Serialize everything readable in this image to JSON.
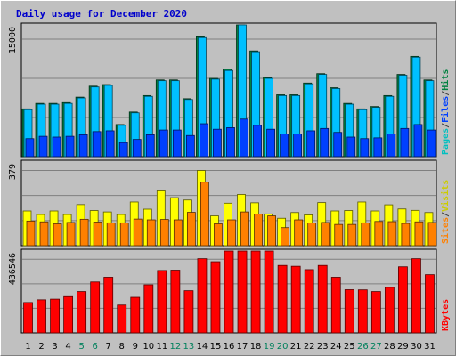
{
  "chart_data": {
    "type": "bar",
    "title": "Daily usage for December 2020",
    "days": [
      "1",
      "2",
      "3",
      "4",
      "5",
      "6",
      "7",
      "8",
      "9",
      "10",
      "11",
      "12",
      "13",
      "14",
      "15",
      "16",
      "17",
      "18",
      "19",
      "20",
      "21",
      "22",
      "23",
      "24",
      "25",
      "26",
      "27",
      "28",
      "29",
      "30",
      "31"
    ],
    "weekend_days": [
      "5",
      "6",
      "12",
      "13",
      "19",
      "20",
      "26",
      "27"
    ],
    "colors": {
      "title": "#0000cc",
      "hits": "#008040",
      "files": "#00c0ff",
      "pages": "#0040ff",
      "visits": "#ffff00",
      "sites": "#ff8000",
      "kbytes": "#ff0000",
      "weekend_label": "#00805c",
      "weekday_label": "#000000",
      "grid": "#808080",
      "background": "#c0c0c0"
    },
    "panels": [
      {
        "id": "traffic",
        "ymax_label": "15000",
        "ymax": 15000,
        "gridlines": 3,
        "legend": [
          {
            "text": "Pages",
            "color": "#00c0c0"
          },
          {
            "text": "/",
            "color": "#404040"
          },
          {
            "text": "Files",
            "color": "#0040ff"
          },
          {
            "text": "/",
            "color": "#404040"
          },
          {
            "text": "Hits",
            "color": "#008040"
          }
        ],
        "series": [
          {
            "name": "Hits",
            "color": "#008040",
            "values": [
              6100,
              6800,
              6800,
              6900,
              7600,
              9000,
              9200,
              4100,
              5700,
              7800,
              9800,
              9800,
              7400,
              15300,
              10000,
              11200,
              18800,
              13500,
              10100,
              7900,
              7900,
              9400,
              10600,
              8800,
              6800,
              6100,
              6400,
              7800,
              10500,
              12800,
              9800
            ]
          },
          {
            "name": "Files",
            "color": "#00c0ff",
            "values": [
              6000,
              6700,
              6700,
              6800,
              7500,
              8900,
              9100,
              4000,
              5600,
              7700,
              9700,
              9700,
              7300,
              15200,
              9900,
              11000,
              18600,
              13400,
              10000,
              7800,
              7800,
              9300,
              10500,
              8700,
              6700,
              6000,
              6300,
              7700,
              10400,
              12700,
              9700
            ]
          },
          {
            "name": "Pages",
            "color": "#0040ff",
            "values": [
              2300,
              2600,
              2500,
              2600,
              2800,
              3200,
              3300,
              1800,
              2200,
              2800,
              3400,
              3400,
              2700,
              4200,
              3500,
              3700,
              4800,
              4000,
              3500,
              2900,
              2900,
              3300,
              3600,
              3100,
              2500,
              2300,
              2400,
              2900,
              3600,
              4100,
              3400
            ]
          }
        ]
      },
      {
        "id": "visits",
        "ymax_label": "379",
        "ymax": 379,
        "gridlines": 3,
        "legend": [
          {
            "text": "Sites",
            "color": "#ff8000"
          },
          {
            "text": "/",
            "color": "#404040"
          },
          {
            "text": "Visits",
            "color": "#cccc00"
          }
        ],
        "series": [
          {
            "name": "Visits",
            "color": "#ffff00",
            "values": [
              175,
              157,
              175,
              157,
              207,
              177,
              170,
              157,
              220,
              184,
              276,
              242,
              230,
              379,
              150,
              214,
              258,
              216,
              160,
              138,
              167,
              155,
              217,
              175,
              177,
              220,
              175,
              206,
              185,
              178,
              167
            ]
          },
          {
            "name": "Sites",
            "color": "#ff8000",
            "values": [
              124,
              120,
              110,
              117,
              133,
              119,
              115,
              115,
              134,
              130,
              132,
              130,
              168,
              320,
              110,
              130,
              170,
              159,
              150,
              91,
              130,
              114,
              117,
              107,
              107,
              115,
              122,
              121,
              112,
              120,
              117
            ]
          }
        ]
      },
      {
        "id": "kbytes",
        "ymax_label": "436546",
        "ymax": 436546,
        "gridlines": 3,
        "legend": [
          {
            "text": "KBytes",
            "color": "#ff0000"
          }
        ],
        "series": [
          {
            "name": "KBytes",
            "color": "#ff0000",
            "values": [
              180000,
              196000,
              200000,
              215000,
              245000,
              302000,
              330000,
              165000,
              211000,
              285000,
              370000,
              372000,
              250000,
              440000,
              422000,
              500000,
              700000,
              630000,
              500000,
              400000,
              395000,
              375000,
              400000,
              330000,
              256000,
              255000,
              245000,
              270000,
              392000,
              440000,
              345000
            ]
          }
        ]
      }
    ]
  }
}
